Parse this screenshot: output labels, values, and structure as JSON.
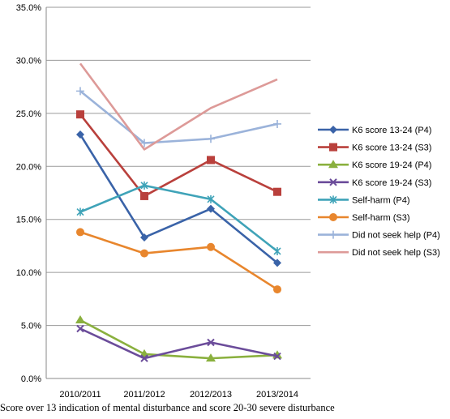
{
  "chart_data": {
    "type": "line",
    "categories": [
      "2010/2011",
      "2011/2012",
      "2012/2013",
      "2013/2014"
    ],
    "ylim": [
      0,
      35
    ],
    "yticks": [
      "0.0%",
      "5.0%",
      "10.0%",
      "15.0%",
      "20.0%",
      "25.0%",
      "30.0%",
      "35.0%"
    ],
    "ytick_values": [
      0,
      5,
      10,
      15,
      20,
      25,
      30,
      35
    ],
    "grid": true,
    "legend_position": "right",
    "series": [
      {
        "name": "K6 score 13-24 (P4)",
        "color": "#3a63a8",
        "marker": "diamond",
        "values": [
          23.0,
          13.3,
          16.0,
          10.9
        ]
      },
      {
        "name": "K6 score 13-24 (S3)",
        "color": "#b9403c",
        "marker": "square",
        "values": [
          24.9,
          17.2,
          20.6,
          17.6
        ]
      },
      {
        "name": "K6 score 19-24 (P4)",
        "color": "#8ab03e",
        "marker": "triangle",
        "values": [
          5.5,
          2.3,
          1.9,
          2.2
        ]
      },
      {
        "name": "K6 score 19-24 (S3)",
        "color": "#6b4c9a",
        "marker": "x",
        "values": [
          4.7,
          1.9,
          3.4,
          2.1
        ]
      },
      {
        "name": "Self-harm (P4)",
        "color": "#3fa3b8",
        "marker": "asterisk",
        "values": [
          15.7,
          18.2,
          16.9,
          12.0
        ]
      },
      {
        "name": "Self-harm (S3)",
        "color": "#e8862d",
        "marker": "circle",
        "values": [
          13.8,
          11.8,
          12.4,
          8.4
        ]
      },
      {
        "name": "Did not seek help (P4)",
        "color": "#9bb3da",
        "marker": "plus",
        "values": [
          27.1,
          22.2,
          22.6,
          24.0
        ]
      },
      {
        "name": "Did not seek help (S3)",
        "color": "#dd9a98",
        "marker": "none",
        "values": [
          29.7,
          21.6,
          25.5,
          28.2
        ]
      }
    ]
  },
  "caption": "Score over 13 indication of mental disturbance and score 20-30 severe disturbance"
}
